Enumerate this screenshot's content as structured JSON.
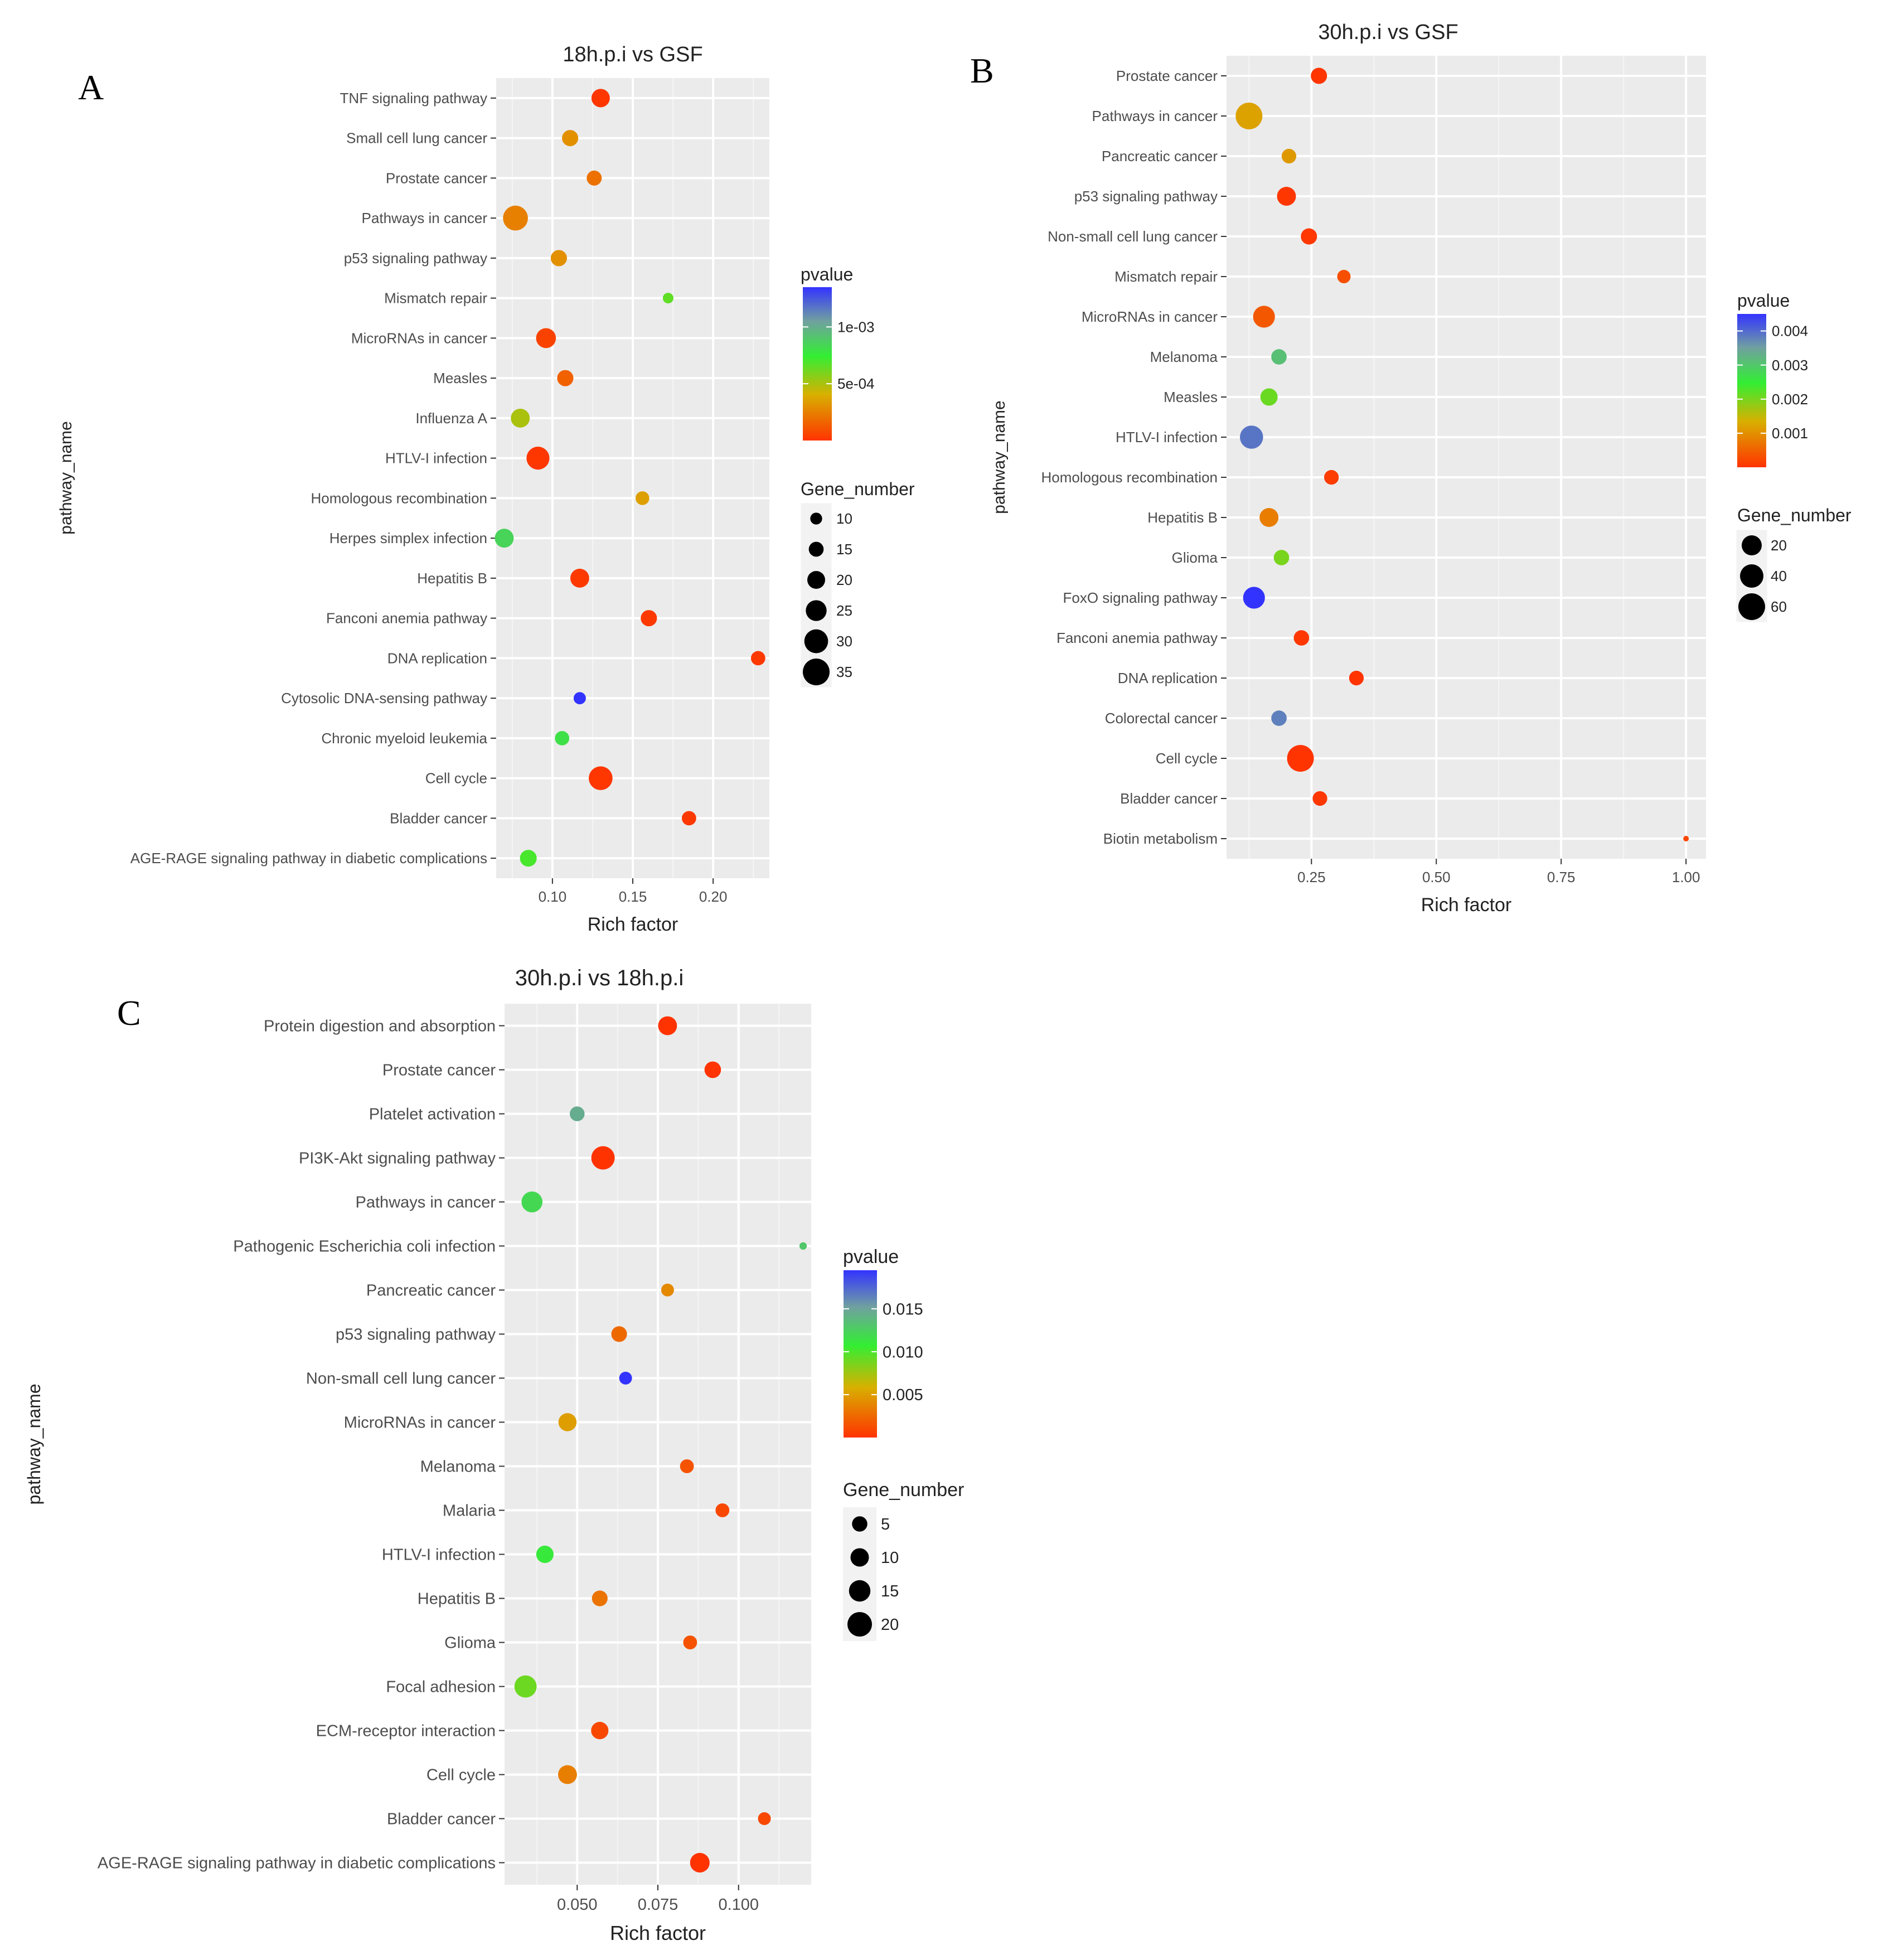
{
  "chart_data": [
    {
      "type": "scatter",
      "panel_letter": "A",
      "title": "18h.p.i vs GSF",
      "xlabel": "Rich factor",
      "ylabel": "pathway_name",
      "xlim": [
        0.065,
        0.235
      ],
      "xticks": [
        "0.10",
        "0.15",
        "0.20"
      ],
      "xtick_values": [
        0.1,
        0.15,
        0.2
      ],
      "categories": [
        "TNF signaling pathway",
        "Small cell lung cancer",
        "Prostate cancer",
        "Pathways in cancer",
        "p53 signaling pathway",
        "Mismatch repair",
        "MicroRNAs in cancer",
        "Measles",
        "Influenza A",
        "HTLV-I infection",
        "Homologous recombination",
        "Herpes simplex infection",
        "Hepatitis B",
        "Fanconi anemia pathway",
        "DNA replication",
        "Cytosolic DNA-sensing pathway",
        "Chronic myeloid leukemia",
        "Cell cycle",
        "Bladder cancer",
        "AGE-RAGE signaling pathway in diabetic complications"
      ],
      "rich_factor": [
        0.13,
        0.111,
        0.126,
        0.077,
        0.104,
        0.172,
        0.096,
        0.108,
        0.08,
        0.091,
        0.156,
        0.07,
        0.117,
        0.16,
        0.228,
        0.117,
        0.106,
        0.13,
        0.185,
        0.085
      ],
      "gene_number": [
        18,
        14,
        12,
        33,
        14,
        6,
        21,
        14,
        19,
        28,
        10,
        19,
        19,
        14,
        11,
        8,
        11,
        30,
        11,
        15
      ],
      "pvalue": [
        1e-05,
        0.0003,
        0.0002,
        0.00025,
        0.0003,
        0.00065,
        5e-05,
        0.00015,
        0.0005,
        1e-05,
        0.00035,
        0.00085,
        2e-05,
        2e-05,
        2e-05,
        0.0014,
        0.0008,
        1e-05,
        2e-05,
        0.0007
      ],
      "colorbar": {
        "title": "pvalue",
        "ticks": [
          "1e-03",
          "5e-04"
        ],
        "tick_values": [
          0.001,
          0.0005
        ],
        "range": [
          0.0,
          0.00135
        ]
      },
      "size_legend": {
        "title": "Gene_number",
        "ticks": [
          "10",
          "15",
          "20",
          "25",
          "30",
          "35"
        ],
        "tick_values": [
          10,
          15,
          20,
          25,
          30,
          35
        ],
        "range": [
          5,
          35
        ]
      }
    },
    {
      "type": "scatter",
      "panel_letter": "B",
      "title": "30h.p.i vs GSF",
      "xlabel": "Rich factor",
      "ylabel": "pathway_name",
      "xlim": [
        0.08,
        1.04
      ],
      "xticks": [
        "0.25",
        "0.50",
        "0.75",
        "1.00"
      ],
      "xtick_values": [
        0.25,
        0.5,
        0.75,
        1.0
      ],
      "categories": [
        "Prostate cancer",
        "Pathways in cancer",
        "Pancreatic cancer",
        "p53 signaling pathway",
        "Non-small cell lung cancer",
        "Mismatch repair",
        "MicroRNAs in cancer",
        "Melanoma",
        "Measles",
        "HTLV-I infection",
        "Homologous recombination",
        "Hepatitis B",
        "Glioma",
        "FoxO signaling pathway",
        "Fanconi anemia pathway",
        "DNA replication",
        "Colorectal cancer",
        "Cell cycle",
        "Bladder cancer",
        "Biotin metabolism"
      ],
      "rich_factor": [
        0.265,
        0.125,
        0.205,
        0.2,
        0.245,
        0.315,
        0.155,
        0.185,
        0.165,
        0.13,
        0.29,
        0.165,
        0.19,
        0.135,
        0.23,
        0.34,
        0.185,
        0.228,
        0.267,
        1.0
      ],
      "gene_number": [
        22,
        60,
        18,
        30,
        22,
        15,
        40,
        20,
        25,
        45,
        18,
        30,
        20,
        40,
        20,
        18,
        20,
        60,
        18,
        2
      ],
      "pvalue": [
        2e-05,
        0.0012,
        0.0011,
        3e-05,
        5e-05,
        0.0003,
        0.0004,
        0.0031,
        0.0021,
        0.0039,
        0.0001,
        0.0008,
        0.002,
        0.0045,
        5e-05,
        1e-05,
        0.0038,
        1e-05,
        5e-05,
        0.0002
      ],
      "colorbar": {
        "title": "pvalue",
        "ticks": [
          "0.004",
          "0.003",
          "0.002",
          "0.001"
        ],
        "tick_values": [
          0.004,
          0.003,
          0.002,
          0.001
        ],
        "range": [
          0.0,
          0.0045
        ]
      },
      "size_legend": {
        "title": "Gene_number",
        "ticks": [
          "20",
          "40",
          "60"
        ],
        "tick_values": [
          20,
          40,
          60
        ],
        "range": [
          0,
          60
        ]
      }
    },
    {
      "type": "scatter",
      "panel_letter": "C",
      "title": "30h.p.i vs 18h.p.i",
      "xlabel": "Rich factor",
      "ylabel": "pathway_name",
      "xlim": [
        0.0275,
        0.1225
      ],
      "xticks": [
        "0.050",
        "0.075",
        "0.100"
      ],
      "xtick_values": [
        0.05,
        0.075,
        0.1
      ],
      "categories": [
        "Protein digestion and absorption",
        "Prostate cancer",
        "Platelet activation",
        "PI3K-Akt signaling pathway",
        "Pathways in cancer",
        "Pathogenic Escherichia coli infection",
        "Pancreatic cancer",
        "p53 signaling pathway",
        "Non-small cell lung cancer",
        "MicroRNAs in cancer",
        "Melanoma",
        "Malaria",
        "HTLV-I infection",
        "Hepatitis B",
        "Glioma",
        "Focal adhesion",
        "ECM-receptor interaction",
        "Cell cycle",
        "Bladder cancer",
        "AGE-RAGE signaling pathway in diabetic complications"
      ],
      "rich_factor": [
        0.078,
        0.092,
        0.05,
        0.058,
        0.036,
        0.12,
        0.078,
        0.063,
        0.065,
        0.047,
        0.084,
        0.095,
        0.04,
        0.057,
        0.085,
        0.034,
        0.057,
        0.047,
        0.108,
        0.088
      ],
      "gene_number": [
        13,
        10,
        8,
        20,
        16,
        2,
        6,
        9,
        6,
        12,
        7,
        7,
        11,
        9,
        7,
        18,
        11,
        13,
        6,
        14
      ],
      "pvalue": [
        2e-05,
        5e-05,
        0.0145,
        2e-05,
        0.012,
        0.013,
        0.004,
        0.0025,
        0.0195,
        0.005,
        0.0015,
        0.001,
        0.011,
        0.003,
        0.0015,
        0.009,
        0.001,
        0.0035,
        0.001,
        2e-05
      ],
      "colorbar": {
        "title": "pvalue",
        "ticks": [
          "0.015",
          "0.010",
          "0.005"
        ],
        "tick_values": [
          0.015,
          0.01,
          0.005
        ],
        "range": [
          0.0,
          0.0195
        ]
      },
      "size_legend": {
        "title": "Gene_number",
        "ticks": [
          "5",
          "10",
          "15",
          "20"
        ],
        "tick_values": [
          5,
          10,
          15,
          20
        ],
        "range": [
          0,
          20
        ]
      }
    }
  ]
}
